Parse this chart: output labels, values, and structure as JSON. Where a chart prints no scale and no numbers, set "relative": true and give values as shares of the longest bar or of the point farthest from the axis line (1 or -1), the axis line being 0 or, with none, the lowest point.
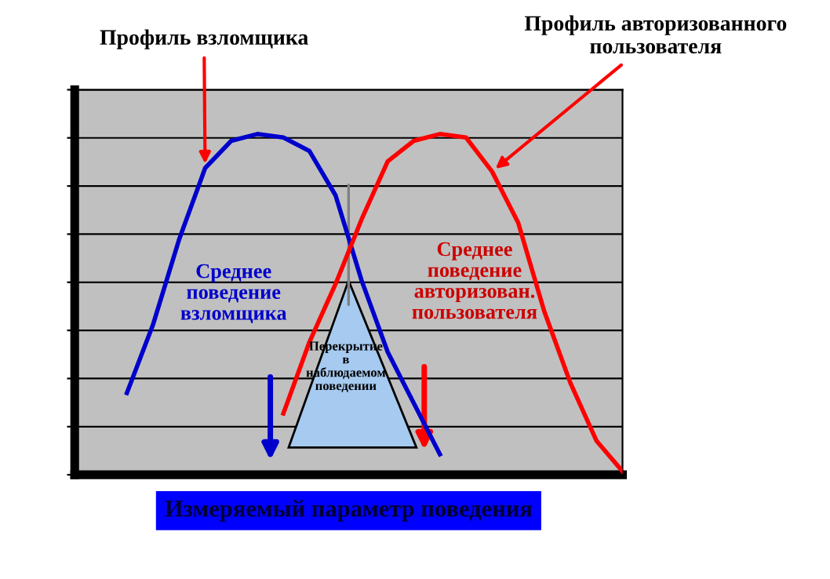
{
  "chart_data": {
    "type": "line",
    "relative": true,
    "grid": "y",
    "marker": "none",
    "line_style": "solid",
    "xlabel": "Измеряемый параметр поведения",
    "categories": [
      null,
      null,
      null,
      null,
      null,
      null,
      null,
      null,
      null,
      null,
      null,
      null,
      null,
      null,
      null,
      null,
      null,
      null,
      null,
      null,
      null
    ],
    "series": [
      {
        "name": "Профиль взломщика",
        "color": "#0000cc",
        "values": [
          null,
          0.24,
          0.44,
          0.69,
          0.9,
          0.98,
          1.0,
          0.99,
          0.95,
          0.82,
          0.57,
          0.36,
          0.21,
          0.06,
          null,
          null,
          null,
          null,
          null,
          null,
          null
        ]
      },
      {
        "name": "Профиль авторизованного пользователя",
        "color": "#ff0000",
        "values": [
          null,
          null,
          null,
          null,
          null,
          null,
          null,
          0.18,
          0.39,
          0.56,
          0.75,
          0.92,
          0.98,
          1.0,
          0.99,
          0.89,
          0.74,
          0.48,
          0.27,
          0.1,
          0.01
        ]
      }
    ],
    "annotations": [
      "Среднее поведение взломщика",
      "Среднее поведение авторизован. пользователя",
      "Перекрытие в наблюдаемом поведении"
    ]
  }
}
